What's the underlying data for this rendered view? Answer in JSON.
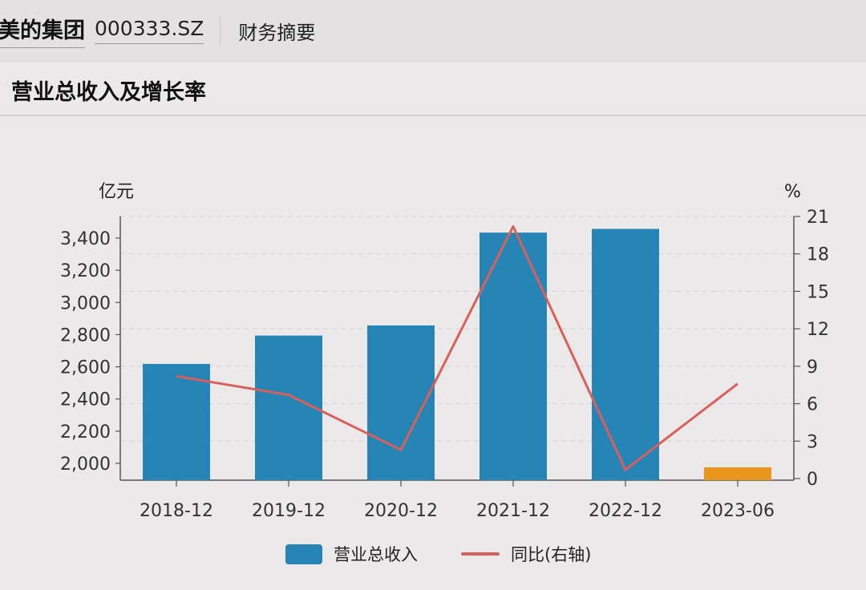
{
  "header": {
    "company": "美的集团",
    "code": "000333.SZ",
    "section": "财务摘要"
  },
  "panel": {
    "title": "营业总收入及增长率"
  },
  "colors": {
    "bar": "#2685b5",
    "bar_highlight": "#e8951c",
    "line": "#d9605a"
  },
  "chart_data": {
    "type": "bar",
    "title": "营业总收入及增长率",
    "categories": [
      "2018-12",
      "2019-12",
      "2020-12",
      "2021-12",
      "2022-12",
      "2023-06"
    ],
    "y_unit_left": "亿元",
    "y_unit_right": "%",
    "ylim_left": [
      1900,
      3500
    ],
    "yticks_left": [
      "2,000",
      "2,200",
      "2,400",
      "2,600",
      "2,800",
      "3,000",
      "3,200",
      "3,400"
    ],
    "ylim_right": [
      0,
      21
    ],
    "yticks_right": [
      "0",
      "3",
      "6",
      "9",
      "12",
      "15",
      "18",
      "21"
    ],
    "series": [
      {
        "name": "营业总收入",
        "type": "bar",
        "axis": "left",
        "values": [
          2618,
          2794,
          2857,
          3434,
          3457,
          1812
        ]
      },
      {
        "name": "同比(右轴)",
        "type": "line",
        "axis": "right",
        "values": [
          8.2,
          6.7,
          2.3,
          20.2,
          0.7,
          7.6
        ]
      }
    ],
    "grid": true,
    "legend": "bottom"
  }
}
